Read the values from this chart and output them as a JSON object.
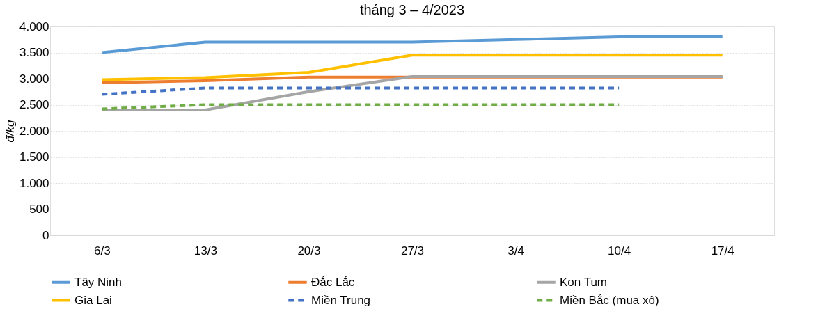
{
  "chart_data": {
    "type": "line",
    "title": "tháng 3 – 4/2023",
    "ylabel": "đ/kg",
    "categories": [
      "6/3",
      "13/3",
      "20/3",
      "27/3",
      "3/4",
      "10/4",
      "17/4"
    ],
    "series": [
      {
        "name": "Tây Ninh",
        "color": "#5b9bd5",
        "values": [
          3500,
          3700,
          3700,
          3700,
          3750,
          3800,
          3800
        ]
      },
      {
        "name": "Đắc Lắc",
        "color": "#ed7d31",
        "values": [
          2920,
          2960,
          3030,
          3030,
          3030,
          3030,
          3030
        ]
      },
      {
        "name": "Kon Tum",
        "color": "#a5a5a5",
        "values": [
          2400,
          2400,
          2750,
          3040,
          3040,
          3040,
          3040
        ]
      },
      {
        "name": "Gia Lai",
        "color": "#ffc000",
        "values": [
          2980,
          3020,
          3120,
          3450,
          3450,
          3450,
          3450
        ]
      },
      {
        "name": "Miền Trung",
        "color": "#4472c4",
        "line_style": "dashed",
        "values": [
          2700,
          2820,
          2820,
          2820,
          2820,
          2820,
          null
        ]
      },
      {
        "name": "Miền Bắc (mua xô)",
        "color": "#70ad47",
        "line_style": "dashed",
        "values": [
          2420,
          2500,
          2500,
          2500,
          2500,
          2500,
          null
        ]
      }
    ],
    "ylim": [
      0,
      4000
    ],
    "yticks": [
      {
        "value": 0,
        "label": "0"
      },
      {
        "value": 500,
        "label": "500"
      },
      {
        "value": 1000,
        "label": "1.000"
      },
      {
        "value": 1500,
        "label": "1.500"
      },
      {
        "value": 2000,
        "label": "2.000"
      },
      {
        "value": 2500,
        "label": "2.500"
      },
      {
        "value": 3000,
        "label": "3.000"
      },
      {
        "value": 3500,
        "label": "3.500"
      },
      {
        "value": 4000,
        "label": "4.000"
      }
    ],
    "grid": "y",
    "legend": "bottom",
    "marker": "none",
    "line_style": "solid"
  }
}
